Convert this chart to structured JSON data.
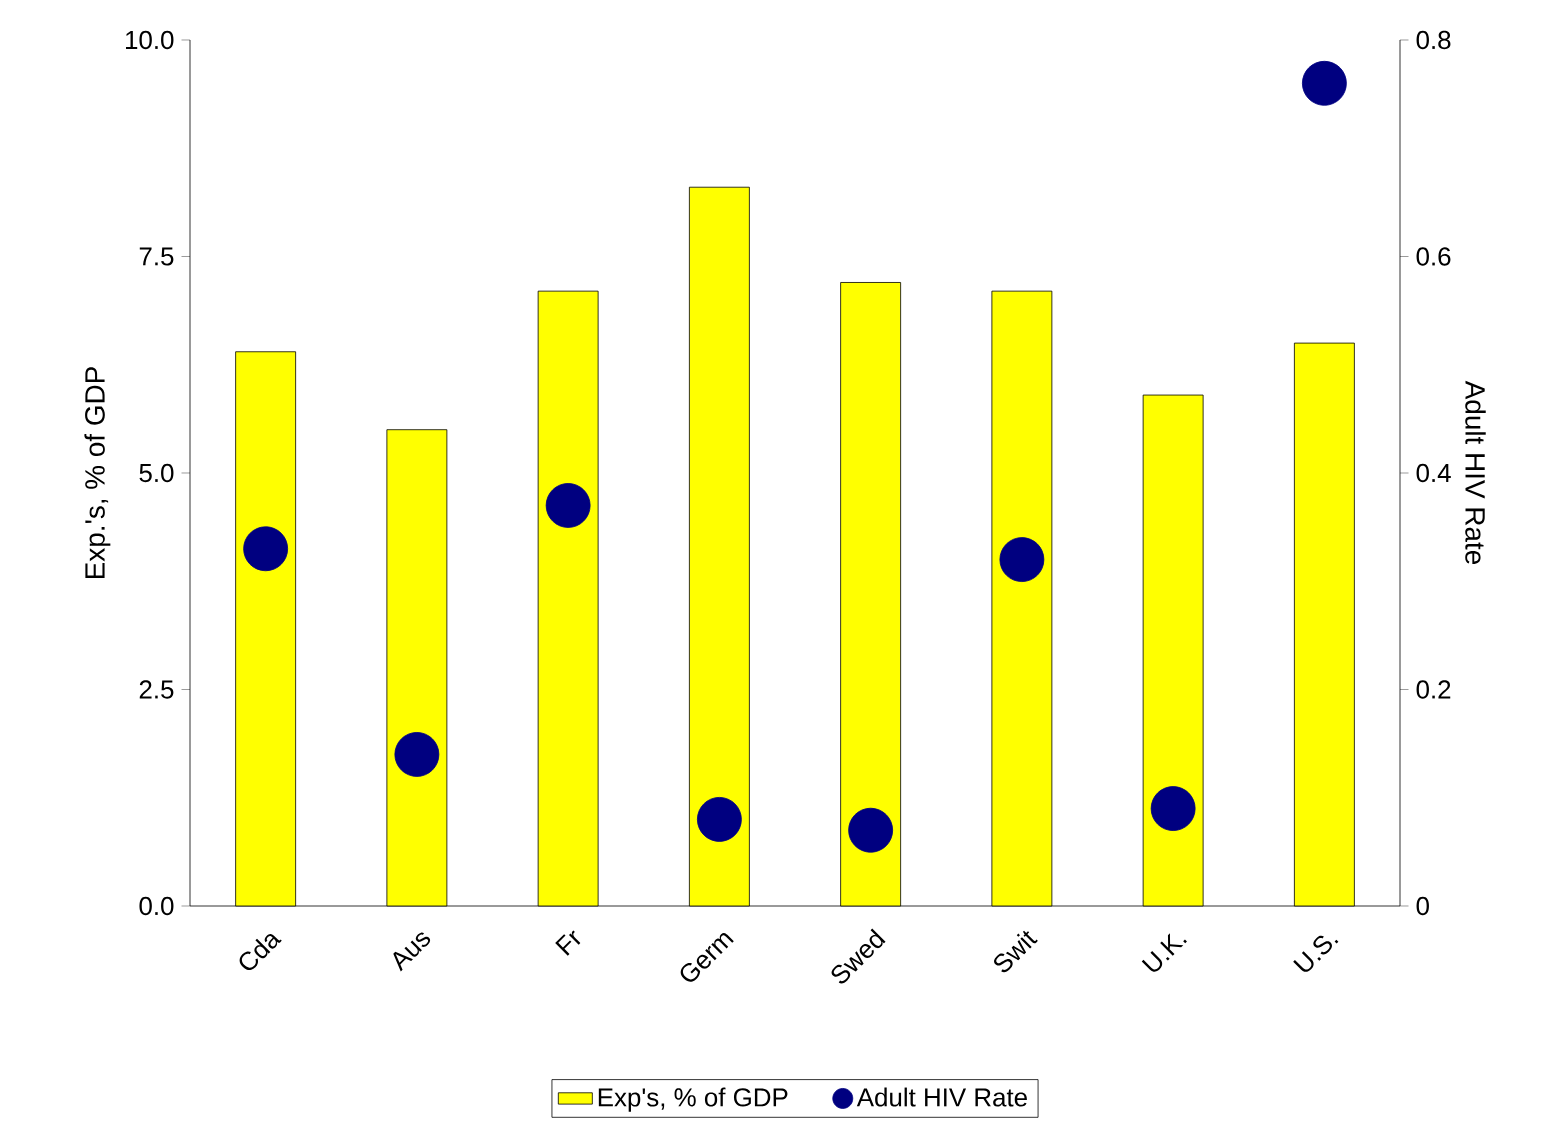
{
  "chart_data": {
    "type": "bar",
    "categories": [
      "Cda",
      "Aus",
      "Fr",
      "Germ",
      "Swed",
      "Swit",
      "U.K.",
      "U.S."
    ],
    "ylabel": "Exp.'s, % of GDP",
    "y2label": "Adult HIV Rate",
    "ylim": [
      0,
      10
    ],
    "yticks": [
      {
        "value": 0,
        "label": "0.0"
      },
      2.5,
      {
        "value": 5,
        "label": "5.0"
      },
      7.5,
      {
        "value": 10,
        "label": "10.0"
      }
    ],
    "y2lim": [
      0,
      0.8
    ],
    "y2ticks": [
      0,
      0.2,
      0.4,
      0.6,
      0.8
    ],
    "legend": "bottom",
    "grid": false,
    "series": [
      {
        "name": "Exp's, % of GDP",
        "color": "#ffff00",
        "values": [
          6.4,
          5.5,
          7.1,
          8.3,
          7.2,
          7.1,
          5.9,
          6.5
        ]
      },
      {
        "name": "Adult HIV Rate",
        "type": "scatter",
        "axis": "y2",
        "color": "#000080",
        "values": [
          0.33,
          0.14,
          0.37,
          0.08,
          0.07,
          0.32,
          0.09,
          0.76
        ]
      }
    ]
  }
}
